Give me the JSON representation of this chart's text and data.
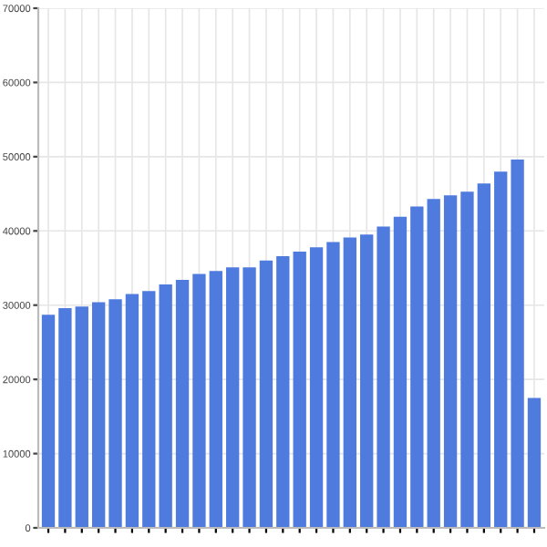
{
  "chart_data": {
    "type": "bar",
    "categories": [
      null,
      null,
      null,
      null,
      null,
      null,
      null,
      null,
      null,
      null,
      null,
      null,
      null,
      null,
      null,
      null,
      null,
      null,
      null,
      null,
      null,
      null,
      null,
      null,
      null,
      null,
      null,
      null,
      null,
      null
    ],
    "values": [
      28700,
      29600,
      29800,
      30400,
      30800,
      31500,
      31900,
      32800,
      33400,
      34200,
      34600,
      35100,
      35100,
      36000,
      36600,
      37200,
      37800,
      38500,
      39100,
      39500,
      40600,
      41900,
      43300,
      44300,
      44800,
      45300,
      46400,
      48000,
      49600,
      17500
    ],
    "color": "#4f7bdf",
    "ylim": [
      0,
      70000
    ],
    "yticks": [
      0,
      10000,
      20000,
      30000,
      40000,
      50000,
      60000,
      70000
    ],
    "grid": true
  }
}
